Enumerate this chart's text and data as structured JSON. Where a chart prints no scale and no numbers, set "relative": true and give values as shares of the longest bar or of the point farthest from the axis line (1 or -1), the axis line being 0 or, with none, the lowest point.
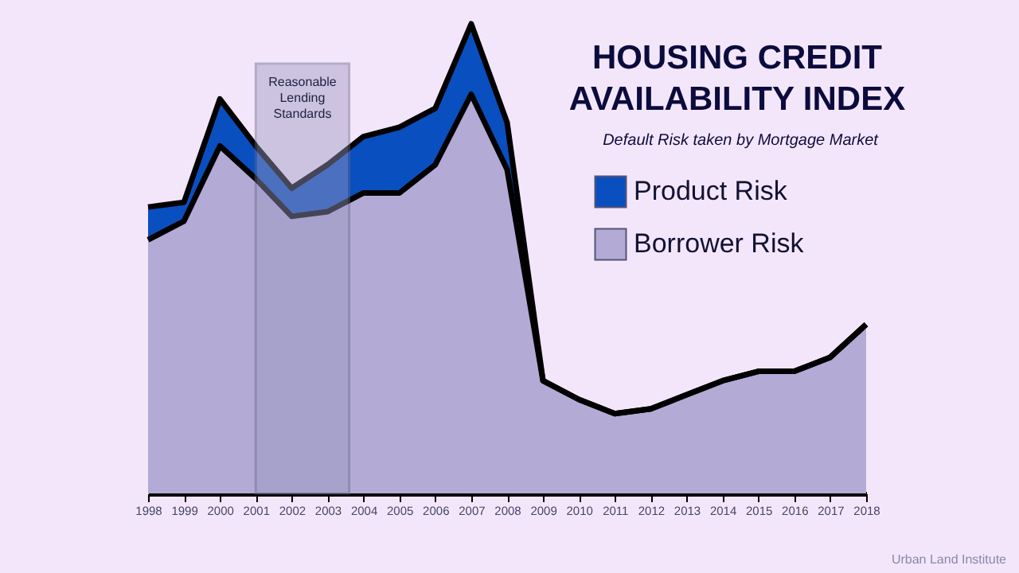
{
  "chart_data": {
    "type": "area",
    "title": "HOUSING CREDIT AVAILABILITY INDEX",
    "subtitle": "Default Risk taken by Mortgage Market",
    "x": [
      1998,
      1999,
      2000,
      2001,
      2002,
      2003,
      2004,
      2005,
      2006,
      2007,
      2008,
      2009,
      2010,
      2011,
      2012,
      2013,
      2014,
      2015,
      2016,
      2017,
      2018
    ],
    "xlim": [
      1998,
      2018
    ],
    "xticks": [
      1998,
      1999,
      2000,
      2001,
      2002,
      2003,
      2004,
      2005,
      2006,
      2007,
      2008,
      2009,
      2010,
      2011,
      2012,
      2013,
      2014,
      2015,
      2016,
      2017,
      2018
    ],
    "relative": true,
    "stacked": true,
    "series": [
      {
        "name": "Borrower Risk",
        "color": "#b3aad6",
        "values": [
          0.54,
          0.58,
          0.74,
          0.67,
          0.59,
          0.6,
          0.64,
          0.64,
          0.7,
          0.85,
          0.69,
          0.24,
          0.2,
          0.17,
          0.18,
          0.21,
          0.24,
          0.26,
          0.26,
          0.29,
          0.36
        ]
      },
      {
        "name": "Product Risk",
        "color": "#0a4fc0",
        "values": [
          0.07,
          0.04,
          0.1,
          0.07,
          0.06,
          0.1,
          0.12,
          0.14,
          0.12,
          0.15,
          0.1,
          0,
          0,
          0,
          0,
          0,
          0,
          0,
          0,
          0,
          0
        ]
      }
    ],
    "bands": [
      {
        "axis": "x",
        "from": 2001,
        "to": 2003.6,
        "label": "Reasonable Lending Standards",
        "color": "#9a9ac0"
      }
    ],
    "legend": "top right",
    "grid": false,
    "annotations": [
      "Urban Land Institute"
    ]
  }
}
